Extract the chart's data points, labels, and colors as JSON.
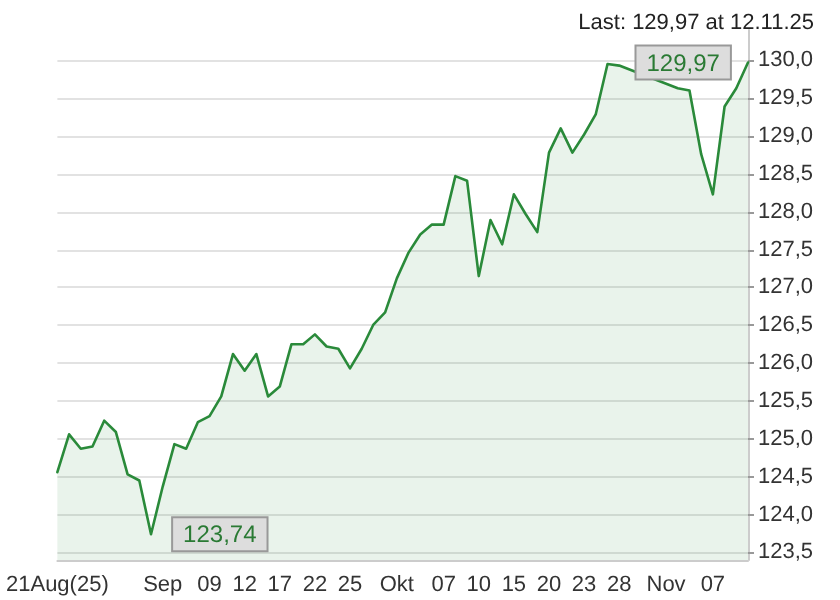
{
  "chart_data": {
    "type": "area",
    "title": "Last: 129,97 at 12.11.25",
    "categories": [
      "21Aug(25)",
      null,
      null,
      null,
      null,
      null,
      null,
      null,
      null,
      "Sep",
      null,
      null,
      null,
      "09",
      null,
      null,
      "12",
      null,
      null,
      "17",
      null,
      null,
      "22",
      null,
      null,
      "25",
      null,
      null,
      null,
      "Okt",
      null,
      null,
      null,
      "07",
      null,
      null,
      "10",
      null,
      null,
      "15",
      null,
      null,
      "20",
      null,
      null,
      "23",
      null,
      null,
      "28",
      null,
      null,
      null,
      "Nov",
      null,
      null,
      null,
      "07",
      null,
      null,
      null
    ],
    "series": [
      {
        "color": "#2a8a3a",
        "values": [
          124.56,
          125.06,
          124.87,
          124.9,
          125.24,
          125.09,
          124.53,
          124.45,
          123.74,
          124.37,
          124.93,
          124.87,
          125.22,
          125.3,
          125.56,
          126.12,
          125.9,
          126.12,
          125.56,
          125.69,
          126.25,
          126.25,
          126.38,
          126.22,
          126.19,
          125.93,
          126.19,
          126.51,
          126.67,
          127.12,
          127.46,
          127.7,
          127.83,
          127.83,
          128.47,
          128.41,
          127.15,
          127.89,
          127.57,
          128.23,
          127.97,
          127.73,
          128.78,
          129.1,
          128.78,
          129.02,
          129.29,
          129.95,
          129.93,
          null,
          null,
          null,
          null,
          129.63,
          129.6,
          128.76,
          128.23,
          129.39,
          129.63,
          129.97
        ],
        "value_labels": [
          null,
          null,
          null,
          null,
          null,
          null,
          null,
          null,
          "123,74",
          null,
          null,
          null,
          null,
          null,
          null,
          null,
          null,
          null,
          null,
          null,
          null,
          null,
          null,
          null,
          null,
          null,
          null,
          null,
          null,
          null,
          null,
          null,
          null,
          null,
          null,
          null,
          null,
          null,
          null,
          null,
          null,
          null,
          null,
          null,
          null,
          null,
          null,
          null,
          null,
          null,
          null,
          null,
          null,
          null,
          null,
          null,
          null,
          null,
          null,
          "129,97"
        ]
      }
    ],
    "ylim": [
      123.4,
      130.4
    ],
    "yticks": [
      {
        "value": 123.5,
        "label": "123,5"
      },
      {
        "value": 124,
        "label": "124,0"
      },
      {
        "value": 124.5,
        "label": "124,5"
      },
      {
        "value": 125,
        "label": "125,0"
      },
      {
        "value": 125.5,
        "label": "125,5"
      },
      {
        "value": 126,
        "label": "126,0"
      },
      {
        "value": 126.5,
        "label": "126,5"
      },
      {
        "value": 127,
        "label": "127,0"
      },
      {
        "value": 127.5,
        "label": "127,5"
      },
      {
        "value": 128,
        "label": "128,0"
      },
      {
        "value": 128.5,
        "label": "128,5"
      },
      {
        "value": 129,
        "label": "129,0"
      },
      {
        "value": 129.5,
        "label": "129,5"
      },
      {
        "value": 130,
        "label": "130,0"
      }
    ],
    "grid": "y",
    "marker": "none",
    "line_style": "solid"
  }
}
